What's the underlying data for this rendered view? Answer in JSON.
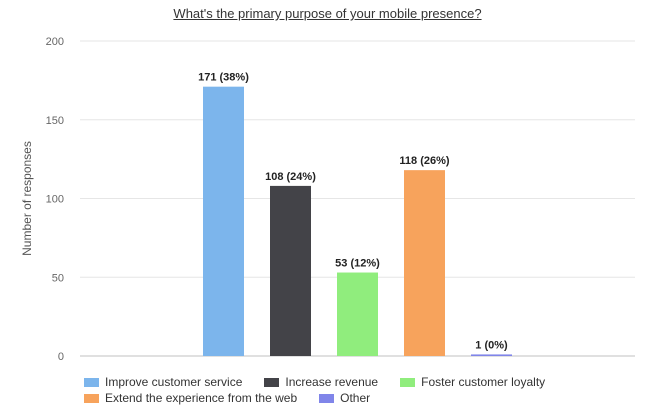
{
  "chart_data": {
    "type": "bar",
    "title": "What's the primary purpose of your mobile presence?",
    "ylabel": "Number of responses",
    "xlabel": "",
    "ylim": [
      0,
      200
    ],
    "yticks": [
      0,
      50,
      100,
      150,
      200
    ],
    "grid": true,
    "legend_position": "bottom",
    "series": [
      {
        "name": "Improve customer service",
        "value": 171,
        "label": "171 (38%)",
        "color": "#7cb5ec"
      },
      {
        "name": "Increase revenue",
        "value": 108,
        "label": "108 (24%)",
        "color": "#434348"
      },
      {
        "name": "Foster customer loyalty",
        "value": 53,
        "label": "53 (12%)",
        "color": "#90ed7d"
      },
      {
        "name": "Extend the experience from the web",
        "value": 118,
        "label": "118 (26%)",
        "color": "#f7a35c"
      },
      {
        "name": "Other",
        "value": 1,
        "label": "1 (0%)",
        "color": "#8085e9"
      }
    ],
    "legend_rows": [
      [
        "Improve customer service",
        "Increase revenue",
        "Foster customer loyalty"
      ],
      [
        "Extend the experience from the web",
        "Other"
      ]
    ]
  }
}
